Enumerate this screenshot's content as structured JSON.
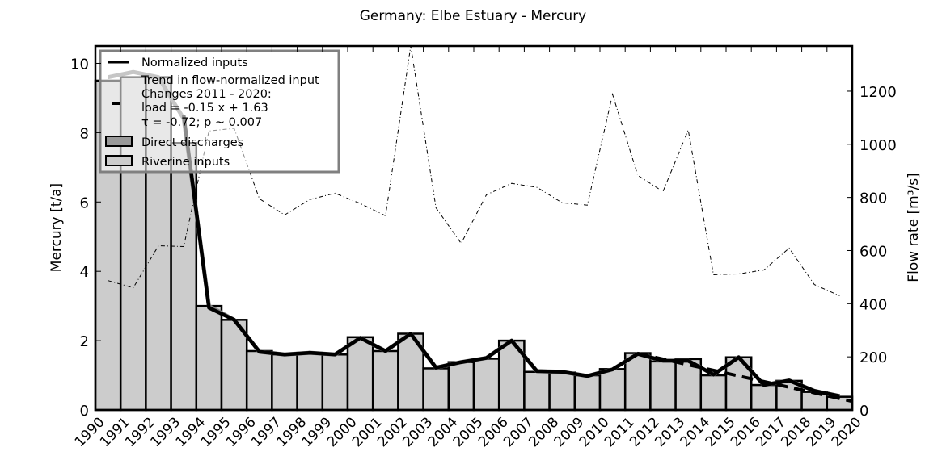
{
  "chart_data": {
    "type": "bar",
    "title": "Germany: Elbe Estuary - Mercury",
    "xlabel": "",
    "ylabel": "Mercury [t/a]",
    "y2label": "Flow rate [m³/s]",
    "ylim": [
      0,
      10.5
    ],
    "y2lim": [
      0,
      1370
    ],
    "yticks": [
      0,
      2,
      4,
      6,
      8,
      10
    ],
    "y2ticks": [
      0,
      200,
      400,
      600,
      800,
      1000,
      1200
    ],
    "xtick_labels": [
      "1990",
      "1991",
      "1992",
      "1993",
      "1994",
      "1995",
      "1996",
      "1997",
      "1998",
      "1999",
      "2000",
      "2001",
      "2002",
      "2003",
      "2004",
      "2005",
      "2006",
      "2007",
      "2008",
      "2009",
      "2010",
      "2011",
      "2012",
      "2013",
      "2014",
      "2015",
      "2016",
      "2017",
      "2018",
      "2019",
      "2020"
    ],
    "categories": [
      "1990",
      "1991",
      "1992",
      "1993",
      "1994",
      "1995",
      "1996",
      "1997",
      "1998",
      "1999",
      "2000",
      "2001",
      "2002",
      "2003",
      "2004",
      "2005",
      "2006",
      "2007",
      "2008",
      "2009",
      "2010",
      "2011",
      "2012",
      "2013",
      "2014",
      "2015",
      "2016",
      "2017",
      "2018",
      "2019"
    ],
    "grid": false,
    "legend_position": "upper left",
    "series": [
      {
        "name": "Riverine inputs",
        "type": "bar",
        "color": "#cccccc",
        "values": [
          9.5,
          9.6,
          9.6,
          7.7,
          3.0,
          2.6,
          1.7,
          1.6,
          1.65,
          1.6,
          2.1,
          1.7,
          2.2,
          1.2,
          1.38,
          1.48,
          2.0,
          1.1,
          1.08,
          1.0,
          1.18,
          1.64,
          1.4,
          1.47,
          1.0,
          1.52,
          0.72,
          0.84,
          0.52,
          0.38
        ]
      },
      {
        "name": "Direct discharges",
        "type": "bar",
        "color": "#999999",
        "values": [
          0,
          0,
          0,
          0,
          0,
          0,
          0,
          0,
          0,
          0,
          0,
          0,
          0,
          0,
          0,
          0,
          0,
          0,
          0,
          0,
          0,
          0,
          0,
          0,
          0,
          0,
          0,
          0,
          0,
          0
        ]
      },
      {
        "name": "Normalized inputs",
        "type": "line",
        "color": "#000000",
        "values": [
          9.6,
          9.7,
          9.6,
          8.5,
          2.95,
          2.6,
          1.68,
          1.6,
          1.65,
          1.6,
          2.08,
          1.7,
          2.2,
          1.22,
          1.38,
          1.5,
          2.0,
          1.12,
          1.1,
          0.98,
          1.17,
          1.62,
          1.42,
          1.42,
          1.02,
          1.52,
          0.72,
          0.85,
          0.55,
          0.4
        ]
      },
      {
        "name": "Trend in flow-normalized input",
        "type": "line",
        "color": "#808080",
        "values": [
          9.6,
          9.75,
          9.6,
          8.4,
          3.0,
          2.6,
          1.68,
          1.6,
          1.65,
          1.6,
          2.08,
          1.7,
          2.2,
          1.22,
          1.38,
          1.5,
          2.0,
          1.12,
          1.1,
          0.98,
          1.17,
          1.62,
          1.42,
          1.42,
          1.02,
          1.52,
          0.72,
          0.85,
          0.55,
          0.4
        ]
      },
      {
        "name": "Changes 2011 - 2020 trend",
        "type": "dashed-line",
        "color": "#000000",
        "x": [
          "2011",
          "2020"
        ],
        "values": [
          1.63,
          0.25
        ]
      },
      {
        "name": "Flow rate",
        "type": "dotted-line",
        "axis": "y2",
        "color": "#000000",
        "values": [
          487,
          460,
          618,
          615,
          1050,
          1060,
          795,
          734,
          792,
          816,
          777,
          731,
          1370,
          761,
          627,
          810,
          853,
          838,
          780,
          771,
          1188,
          883,
          822,
          1054,
          509,
          512,
          527,
          609,
          472,
          430
        ]
      }
    ],
    "legend": [
      {
        "label": "Normalized inputs",
        "symbol": "line-black"
      },
      {
        "label": "Trend in flow-normalized input",
        "symbol": "line-gray"
      },
      {
        "label": "Changes 2011 - 2020:",
        "symbol": "dash-black"
      },
      {
        "label": "load = -0.15 x +  1.63",
        "symbol": "none"
      },
      {
        "label": "τ = -0.72; p ~ 0.007",
        "symbol": "none"
      },
      {
        "label": "Direct discharges",
        "symbol": "patch-dark"
      },
      {
        "label": "Riverine inputs",
        "symbol": "patch-light"
      }
    ],
    "annotations": {
      "trend_equation": "load = -0.15 x +  1.63",
      "kendall": "τ = -0.72; p ~ 0.007",
      "period": "Changes 2011 - 2020:"
    }
  }
}
